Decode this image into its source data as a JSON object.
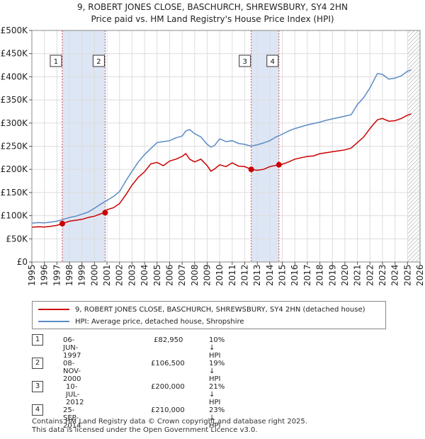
{
  "title_line1": "9, ROBERT JONES CLOSE, BASCHURCH, SHREWSBURY, SY4 2HN",
  "title_line2": "Price paid vs. HM Land Registry's House Price Index (HPI)",
  "legend": {
    "red_label": "9, ROBERT JONES CLOSE, BASCHURCH, SHREWSBURY, SY4 2HN (detached house)",
    "blue_label": "HPI: Average price, detached house, Shropshire"
  },
  "sales": [
    {
      "id": "1",
      "date": "06-JUN-1997",
      "price": "£82,950",
      "hpi": "10% ↓ HPI"
    },
    {
      "id": "2",
      "date": "08-NOV-2000",
      "price": "£106,500",
      "hpi": "19% ↓ HPI"
    },
    {
      "id": "3",
      "date": "10-JUL-2012",
      "price": "£200,000",
      "hpi": "21% ↓ HPI"
    },
    {
      "id": "4",
      "date": "25-SEP-2014",
      "price": "£210,000",
      "hpi": "23% ↓ HPI"
    }
  ],
  "footer": {
    "line1": "Contains HM Land Registry data © Crown copyright and database right 2025.",
    "line2": "This data is licensed under the Open Government Licence v3.0."
  },
  "colors": {
    "red": "#cc0000",
    "blue": "#5b8bc5",
    "shade": "#dde6f4",
    "grid": "#dddddd"
  },
  "chart_data": {
    "type": "line",
    "xlim": [
      1995,
      2026
    ],
    "ylim": [
      0,
      500000
    ],
    "yticks": [
      0,
      50000,
      100000,
      150000,
      200000,
      250000,
      300000,
      350000,
      400000,
      450000,
      500000
    ],
    "ytick_labels": [
      "£0",
      "£50K",
      "£100K",
      "£150K",
      "£200K",
      "£250K",
      "£300K",
      "£350K",
      "£400K",
      "£450K",
      "£500K"
    ],
    "xticks": [
      1995,
      1996,
      1997,
      1998,
      1999,
      2000,
      2001,
      2002,
      2003,
      2004,
      2005,
      2006,
      2007,
      2008,
      2009,
      2010,
      2011,
      2012,
      2013,
      2014,
      2015,
      2016,
      2017,
      2018,
      2019,
      2020,
      2021,
      2022,
      2023,
      2024,
      2025,
      2026
    ],
    "xtick_labels": [
      "1995",
      "1996",
      "1997",
      "1998",
      "1999",
      "2000",
      "2001",
      "2002",
      "2003",
      "2004",
      "2005",
      "2006",
      "2007",
      "2008",
      "2009",
      "2010",
      "2011",
      "2012",
      "2013",
      "2014",
      "2015",
      "2016",
      "2017",
      "2018",
      "2019",
      "2020",
      "2021",
      "2022",
      "2023",
      "2024",
      "2025",
      "2026"
    ],
    "shaded_ranges": [
      [
        1997.43,
        2000.85
      ],
      [
        2012.52,
        2014.73
      ]
    ],
    "hatched_from": 2025.0,
    "series": [
      {
        "name": "9, ROBERT JONES CLOSE, BASCHURCH, SHREWSBURY, SY4 2HN (detached house)",
        "color": "#cc0000",
        "x": [
          1995,
          1995.5,
          1996,
          1996.5,
          1997,
          1997.43,
          1998,
          1998.5,
          1999,
          1999.5,
          2000,
          2000.5,
          2000.85,
          2001,
          2001.5,
          2002,
          2002.5,
          2003,
          2003.5,
          2004,
          2004.5,
          2005,
          2005.5,
          2006,
          2006.5,
          2007,
          2007.3,
          2007.6,
          2008,
          2008.5,
          2009,
          2009.3,
          2009.6,
          2010,
          2010.5,
          2011,
          2011.5,
          2012,
          2012.52,
          2013,
          2013.5,
          2014,
          2014.73,
          2015,
          2015.5,
          2016,
          2016.5,
          2017,
          2017.5,
          2018,
          2018.5,
          2019,
          2019.5,
          2020,
          2020.5,
          2021,
          2021.5,
          2022,
          2022.3,
          2022.6,
          2023,
          2023.5,
          2024,
          2024.5,
          2025,
          2025.3
        ],
        "y": [
          75000,
          76000,
          75500,
          77000,
          79000,
          82950,
          88000,
          90000,
          92000,
          96000,
          99000,
          104000,
          106500,
          113000,
          117000,
          126000,
          145000,
          166000,
          183000,
          195000,
          212000,
          215000,
          208000,
          218000,
          222000,
          228000,
          234000,
          222000,
          216000,
          222000,
          208000,
          196000,
          201000,
          210000,
          206000,
          214000,
          207000,
          206000,
          200000,
          198000,
          200000,
          206000,
          210000,
          211000,
          216000,
          222000,
          225000,
          228000,
          229000,
          234000,
          236000,
          238000,
          240000,
          242000,
          246000,
          258000,
          270000,
          288000,
          298000,
          307000,
          310000,
          304000,
          305000,
          310000,
          317000,
          320000
        ]
      },
      {
        "name": "HPI: Average price, detached house, Shropshire",
        "color": "#5b8bc5",
        "x": [
          1995,
          1995.5,
          1996,
          1996.5,
          1997,
          1997.5,
          1998,
          1998.5,
          1999,
          1999.5,
          2000,
          2000.5,
          2001,
          2001.5,
          2002,
          2002.5,
          2003,
          2003.5,
          2004,
          2004.5,
          2005,
          2005.5,
          2006,
          2006.5,
          2007,
          2007.3,
          2007.6,
          2008,
          2008.5,
          2009,
          2009.3,
          2009.6,
          2010,
          2010.5,
          2011,
          2011.5,
          2012,
          2012.5,
          2013,
          2013.5,
          2014,
          2014.5,
          2015,
          2015.5,
          2016,
          2016.5,
          2017,
          2017.5,
          2018,
          2018.5,
          2019,
          2019.5,
          2020,
          2020.5,
          2021,
          2021.5,
          2022,
          2022.3,
          2022.6,
          2023,
          2023.5,
          2024,
          2024.5,
          2025,
          2025.3
        ],
        "y": [
          84000,
          85000,
          84500,
          86000,
          88000,
          92000,
          96000,
          99000,
          103000,
          108000,
          116000,
          125000,
          133000,
          141000,
          152000,
          175000,
          196000,
          216000,
          232000,
          245000,
          258000,
          260000,
          262000,
          268000,
          272000,
          283000,
          286000,
          277000,
          270000,
          254000,
          248000,
          252000,
          266000,
          260000,
          262000,
          256000,
          254000,
          250000,
          253000,
          257000,
          262000,
          270000,
          276000,
          283000,
          288000,
          292000,
          296000,
          299000,
          302000,
          306000,
          309000,
          312000,
          315000,
          318000,
          340000,
          355000,
          376000,
          392000,
          407000,
          405000,
          395000,
          397000,
          402000,
          412000,
          415000
        ]
      }
    ],
    "sale_points": [
      {
        "label": "1",
        "x": 1997.43,
        "y": 82950
      },
      {
        "label": "2",
        "x": 2000.85,
        "y": 106500
      },
      {
        "label": "3",
        "x": 2012.52,
        "y": 200000
      },
      {
        "label": "4",
        "x": 2014.73,
        "y": 210000
      }
    ]
  }
}
